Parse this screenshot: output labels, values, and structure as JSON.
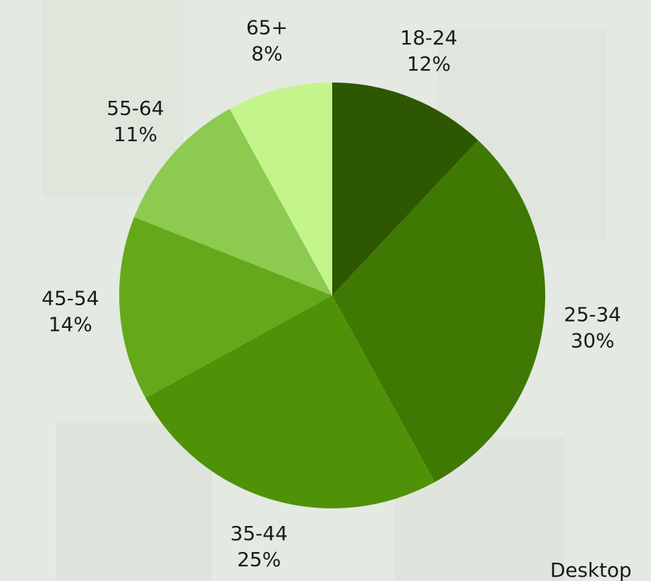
{
  "chart_data": {
    "type": "pie",
    "categories": [
      "18-24",
      "25-34",
      "35-44",
      "45-54",
      "55-64",
      "65+"
    ],
    "values": [
      12,
      30,
      25,
      14,
      11,
      8
    ],
    "value_labels": [
      "12%",
      "30%",
      "25%",
      "14%",
      "11%",
      "8%"
    ],
    "colors": [
      "#2d5700",
      "#3f7803",
      "#4f9207",
      "#65a91a",
      "#8dca50",
      "#c4f48c"
    ]
  },
  "footer_text": "Desktop"
}
